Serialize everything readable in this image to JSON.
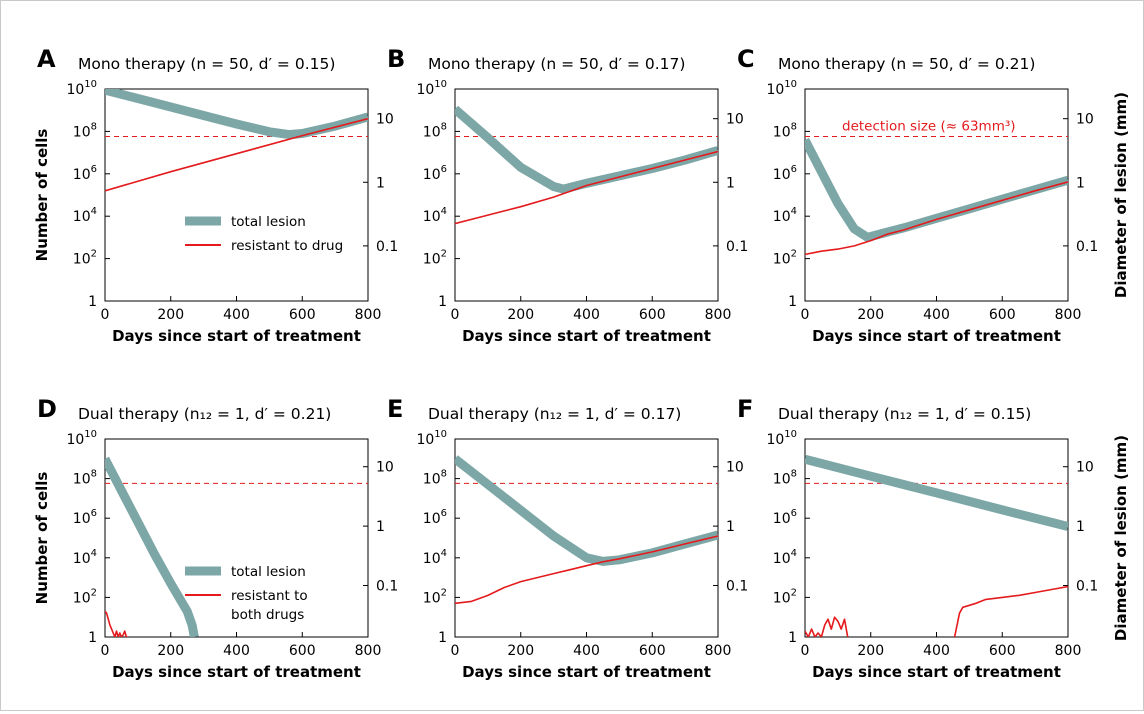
{
  "colors": {
    "total": "#7da7a7",
    "resistant": "#e41a1c",
    "axis": "#000000"
  },
  "chart_data": [
    {
      "panel": "A",
      "type": "line",
      "title": "Mono therapy (n = 50, d′ = 0.15)",
      "xlabel": "Days since start of treatment",
      "ylabel": "Number of cells",
      "ylabel_right": "",
      "xlim": [
        0,
        800
      ],
      "ylim_log10": [
        0,
        10
      ],
      "y_scale": "log",
      "x_ticks": [
        "0",
        "200",
        "400",
        "600",
        "800"
      ],
      "y_ticks": [
        {
          "exp": 10,
          "label": "10",
          "sup": "10"
        },
        {
          "exp": 8,
          "label": "10",
          "sup": "8"
        },
        {
          "exp": 6,
          "label": "10",
          "sup": "6"
        },
        {
          "exp": 4,
          "label": "10",
          "sup": "4"
        },
        {
          "exp": 2,
          "label": "10",
          "sup": "2"
        },
        {
          "exp": 0,
          "label": "1",
          "sup": ""
        }
      ],
      "right_ticks": [
        {
          "exp": 8.6,
          "label": "10"
        },
        {
          "exp": 5.6,
          "label": "1"
        },
        {
          "exp": 2.6,
          "label": "0.1"
        }
      ],
      "detection_log10": 7.76,
      "legend": {
        "show": true,
        "placement": "center",
        "entries": [
          "total lesion",
          "resistant to drug"
        ]
      },
      "annotation": "",
      "series": [
        {
          "name": "total lesion",
          "x": [
            0,
            100,
            200,
            300,
            400,
            500,
            560,
            600,
            700,
            800
          ],
          "log10_cells": [
            9.95,
            9.55,
            9.15,
            8.75,
            8.35,
            7.98,
            7.85,
            7.9,
            8.25,
            8.68
          ]
        },
        {
          "name": "resistant to drug",
          "x": [
            0,
            200,
            400,
            600,
            800
          ],
          "log10_cells": [
            5.2,
            6.1,
            6.95,
            7.8,
            8.6
          ]
        }
      ]
    },
    {
      "panel": "B",
      "type": "line",
      "title": "Mono therapy (n = 50, d′ = 0.17)",
      "xlabel": "Days since start of treatment",
      "ylabel": "",
      "ylabel_right": "",
      "xlim": [
        0,
        800
      ],
      "ylim_log10": [
        0,
        10
      ],
      "y_scale": "log",
      "x_ticks": [
        "0",
        "200",
        "400",
        "600",
        "800"
      ],
      "y_ticks": [
        {
          "exp": 10,
          "label": "10",
          "sup": "10"
        },
        {
          "exp": 8,
          "label": "10",
          "sup": "8"
        },
        {
          "exp": 6,
          "label": "10",
          "sup": "6"
        },
        {
          "exp": 4,
          "label": "10",
          "sup": "4"
        },
        {
          "exp": 2,
          "label": "10",
          "sup": "2"
        },
        {
          "exp": 0,
          "label": "1",
          "sup": ""
        }
      ],
      "right_ticks": [
        {
          "exp": 8.6,
          "label": "10"
        },
        {
          "exp": 5.6,
          "label": "1"
        },
        {
          "exp": 2.6,
          "label": "0.1"
        }
      ],
      "detection_log10": 7.76,
      "legend": {
        "show": false
      },
      "annotation": "",
      "series": [
        {
          "name": "total lesion",
          "x": [
            0,
            100,
            200,
            300,
            330,
            400,
            500,
            600,
            700,
            800
          ],
          "log10_cells": [
            9.05,
            7.7,
            6.3,
            5.4,
            5.28,
            5.55,
            5.9,
            6.25,
            6.65,
            7.1
          ]
        },
        {
          "name": "resistant to drug",
          "x": [
            0,
            100,
            200,
            300,
            400,
            500,
            600,
            700,
            800
          ],
          "log10_cells": [
            3.65,
            4.05,
            4.45,
            4.9,
            5.45,
            5.85,
            6.25,
            6.65,
            7.05
          ]
        }
      ]
    },
    {
      "panel": "C",
      "type": "line",
      "title": "Mono therapy (n = 50, d′ = 0.21)",
      "xlabel": "Days since start of treatment",
      "ylabel": "",
      "ylabel_right": "Diameter of lesion (mm)",
      "xlim": [
        0,
        800
      ],
      "ylim_log10": [
        0,
        10
      ],
      "y_scale": "log",
      "x_ticks": [
        "0",
        "200",
        "400",
        "600",
        "800"
      ],
      "y_ticks": [
        {
          "exp": 10,
          "label": "10",
          "sup": "10"
        },
        {
          "exp": 8,
          "label": "10",
          "sup": "8"
        },
        {
          "exp": 6,
          "label": "10",
          "sup": "6"
        },
        {
          "exp": 4,
          "label": "10",
          "sup": "4"
        },
        {
          "exp": 2,
          "label": "10",
          "sup": "2"
        },
        {
          "exp": 0,
          "label": "1",
          "sup": ""
        }
      ],
      "right_ticks": [
        {
          "exp": 8.6,
          "label": "10"
        },
        {
          "exp": 5.6,
          "label": "1"
        },
        {
          "exp": 2.6,
          "label": "0.1"
        }
      ],
      "detection_log10": 7.76,
      "legend": {
        "show": false
      },
      "annotation": "detection size (≈ 63mm³)",
      "series": [
        {
          "name": "total lesion",
          "x": [
            0,
            50,
            100,
            150,
            190,
            250,
            300,
            400,
            500,
            600,
            700,
            800
          ],
          "log10_cells": [
            7.6,
            6.1,
            4.6,
            3.4,
            3.0,
            3.25,
            3.45,
            3.9,
            4.35,
            4.8,
            5.25,
            5.7
          ]
        },
        {
          "name": "resistant to drug",
          "x": [
            0,
            50,
            100,
            150,
            200,
            250,
            300,
            400,
            500,
            600,
            700,
            800
          ],
          "log10_cells": [
            2.2,
            2.35,
            2.45,
            2.6,
            2.85,
            3.15,
            3.35,
            3.85,
            4.3,
            4.75,
            5.2,
            5.62
          ]
        }
      ]
    },
    {
      "panel": "D",
      "type": "line",
      "title": "Dual therapy (n₁₂ = 1, d′ = 0.21)",
      "xlabel": "Days since start of treatment",
      "ylabel": "Number of cells",
      "ylabel_right": "",
      "xlim": [
        0,
        800
      ],
      "ylim_log10": [
        0,
        10
      ],
      "y_scale": "log",
      "x_ticks": [
        "0",
        "200",
        "400",
        "600",
        "800"
      ],
      "y_ticks": [
        {
          "exp": 10,
          "label": "10",
          "sup": "10"
        },
        {
          "exp": 8,
          "label": "10",
          "sup": "8"
        },
        {
          "exp": 6,
          "label": "10",
          "sup": "6"
        },
        {
          "exp": 4,
          "label": "10",
          "sup": "4"
        },
        {
          "exp": 2,
          "label": "10",
          "sup": "2"
        },
        {
          "exp": 0,
          "label": "1",
          "sup": ""
        }
      ],
      "right_ticks": [
        {
          "exp": 8.6,
          "label": "10"
        },
        {
          "exp": 5.6,
          "label": "1"
        },
        {
          "exp": 2.6,
          "label": "0.1"
        }
      ],
      "detection_log10": 7.76,
      "legend": {
        "show": true,
        "placement": "center",
        "entries": [
          "total lesion",
          "resistant to",
          "both drugs"
        ]
      },
      "annotation": "",
      "series": [
        {
          "name": "total lesion",
          "x": [
            0,
            50,
            100,
            150,
            200,
            250,
            265,
            272
          ],
          "log10_cells": [
            9.0,
            7.4,
            5.8,
            4.2,
            2.7,
            1.3,
            0.6,
            0
          ]
        },
        {
          "name": "resistant to both drugs",
          "x": [
            0,
            5,
            10,
            15,
            20,
            25,
            30,
            35,
            40,
            45,
            50,
            55,
            60,
            65,
            70
          ],
          "log10_cells": [
            1.3,
            1.2,
            0.9,
            0.6,
            0.4,
            0.2,
            0,
            0.3,
            0,
            0.2,
            0,
            0.1,
            0.3,
            0,
            0
          ]
        }
      ]
    },
    {
      "panel": "E",
      "type": "line",
      "title": "Dual therapy (n₁₂ = 1, d′ = 0.17)",
      "xlabel": "Days since start of treatment",
      "ylabel": "",
      "ylabel_right": "",
      "xlim": [
        0,
        800
      ],
      "ylim_log10": [
        0,
        10
      ],
      "y_scale": "log",
      "x_ticks": [
        "0",
        "200",
        "400",
        "600",
        "800"
      ],
      "y_ticks": [
        {
          "exp": 10,
          "label": "10",
          "sup": "10"
        },
        {
          "exp": 8,
          "label": "10",
          "sup": "8"
        },
        {
          "exp": 6,
          "label": "10",
          "sup": "6"
        },
        {
          "exp": 4,
          "label": "10",
          "sup": "4"
        },
        {
          "exp": 2,
          "label": "10",
          "sup": "2"
        },
        {
          "exp": 0,
          "label": "1",
          "sup": ""
        }
      ],
      "right_ticks": [
        {
          "exp": 8.6,
          "label": "10"
        },
        {
          "exp": 5.6,
          "label": "1"
        },
        {
          "exp": 2.6,
          "label": "0.1"
        }
      ],
      "detection_log10": 7.76,
      "legend": {
        "show": false
      },
      "annotation": "",
      "series": [
        {
          "name": "total lesion",
          "x": [
            0,
            100,
            200,
            300,
            400,
            450,
            500,
            600,
            700,
            800
          ],
          "log10_cells": [
            9.0,
            7.7,
            6.4,
            5.1,
            4.0,
            3.82,
            3.9,
            4.25,
            4.7,
            5.15
          ]
        },
        {
          "name": "resistant to both drugs",
          "x": [
            0,
            50,
            100,
            150,
            200,
            250,
            300,
            350,
            400,
            450,
            500,
            600,
            700,
            800
          ],
          "log10_cells": [
            1.7,
            1.8,
            2.1,
            2.5,
            2.8,
            3.0,
            3.2,
            3.4,
            3.6,
            3.8,
            3.95,
            4.3,
            4.7,
            5.1
          ]
        }
      ]
    },
    {
      "panel": "F",
      "type": "line",
      "title": "Dual therapy (n₁₂ = 1, d′ = 0.15)",
      "xlabel": "Days since start of treatment",
      "ylabel": "",
      "ylabel_right": "Diameter of lesion (mm)",
      "xlim": [
        0,
        800
      ],
      "ylim_log10": [
        0,
        10
      ],
      "y_scale": "log",
      "x_ticks": [
        "0",
        "200",
        "400",
        "600",
        "800"
      ],
      "y_ticks": [
        {
          "exp": 10,
          "label": "10",
          "sup": "10"
        },
        {
          "exp": 8,
          "label": "10",
          "sup": "8"
        },
        {
          "exp": 6,
          "label": "10",
          "sup": "6"
        },
        {
          "exp": 4,
          "label": "10",
          "sup": "4"
        },
        {
          "exp": 2,
          "label": "10",
          "sup": "2"
        },
        {
          "exp": 0,
          "label": "1",
          "sup": ""
        }
      ],
      "right_ticks": [
        {
          "exp": 8.6,
          "label": "10"
        },
        {
          "exp": 5.6,
          "label": "1"
        },
        {
          "exp": 2.6,
          "label": "0.1"
        }
      ],
      "detection_log10": 7.76,
      "legend": {
        "show": false
      },
      "annotation": "",
      "series": [
        {
          "name": "total lesion",
          "x": [
            0,
            200,
            400,
            600,
            800
          ],
          "log10_cells": [
            8.98,
            8.12,
            7.28,
            6.42,
            5.58
          ]
        },
        {
          "name": "resistant to both drugs (early)",
          "x": [
            0,
            10,
            20,
            30,
            40,
            50,
            60,
            70,
            80,
            90,
            100,
            110,
            120,
            130
          ],
          "log10_cells": [
            0.3,
            0,
            0.4,
            0,
            0.2,
            0,
            0.6,
            0.9,
            0.4,
            1.0,
            0.8,
            0.4,
            0.9,
            0
          ]
        },
        {
          "name": "resistant to both drugs (late)",
          "x": [
            455,
            470,
            480,
            500,
            520,
            550,
            600,
            650,
            700,
            750,
            800
          ],
          "log10_cells": [
            0,
            1.2,
            1.5,
            1.6,
            1.7,
            1.9,
            2.0,
            2.1,
            2.25,
            2.4,
            2.55
          ]
        }
      ]
    }
  ]
}
